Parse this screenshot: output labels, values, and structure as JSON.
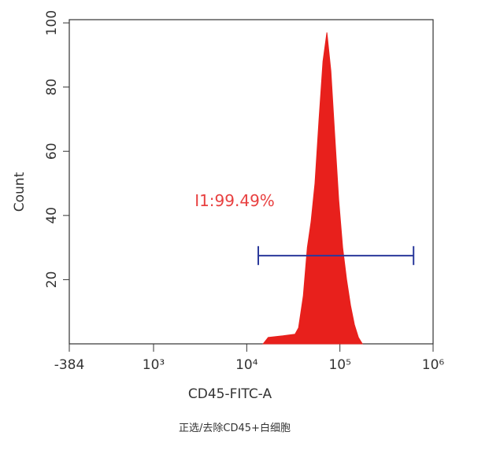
{
  "chart_data": {
    "type": "histogram-area",
    "ylabel": "Count",
    "xlabel": "CD45-FITC-A",
    "caption": "正选/去除CD45+白细胞",
    "color": "#e8201c",
    "x": [
      15000,
      17000,
      24500,
      33000,
      36000,
      40500,
      44700,
      49000,
      54000,
      59700,
      65800,
      72500,
      80000,
      88000,
      97000,
      107000,
      118000,
      130000,
      143000,
      158000,
      174000
    ],
    "values": [
      0,
      2,
      2.5,
      3,
      5,
      15,
      30,
      38,
      50,
      70,
      88,
      97,
      85,
      65,
      45,
      30,
      20,
      12,
      6,
      2,
      0
    ],
    "xlim": [
      -384,
      1000000
    ],
    "xticks": [
      -384,
      {
        "value": 1000,
        "label": "10³"
      },
      {
        "value": 10000,
        "label": "10⁴"
      },
      {
        "value": 100000,
        "label": "10⁵"
      },
      {
        "value": 1000000,
        "label": "10⁶"
      }
    ],
    "ylim": [
      0,
      101
    ],
    "yticks": [
      20,
      40,
      60,
      80,
      100
    ],
    "gate": {
      "label": "I1:99.49%",
      "x": [
        13300,
        617000
      ],
      "y": 27.5,
      "color": "#2b3a9c",
      "label_color": "#e84040"
    }
  }
}
